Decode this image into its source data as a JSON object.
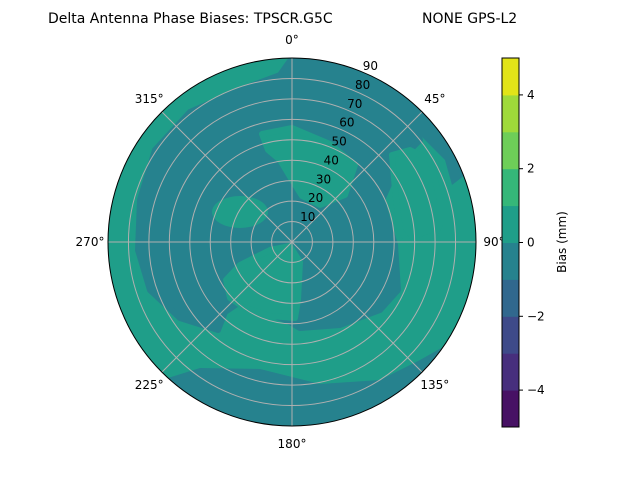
{
  "chart_data": {
    "type": "heatmap",
    "subtype": "polar-filled-contour",
    "title_left": "Delta Antenna Phase Biases: TPSCR.G5C",
    "title_right": "NONE GPS-L2",
    "angular_ticks": [
      "0°",
      "45°",
      "90°",
      "135°",
      "180°",
      "225°",
      "270°",
      "315°"
    ],
    "radial_ticks": [
      "10",
      "20",
      "30",
      "40",
      "50",
      "60",
      "70",
      "80",
      "90"
    ],
    "radial_range": [
      0,
      90
    ],
    "angular_direction": "clockwise",
    "zero_location": "north",
    "grid": true,
    "colorbar": {
      "label": "Bias (mm)",
      "range": [
        -5,
        5
      ],
      "levels": [
        -5,
        -4,
        -3,
        -2,
        -1,
        0,
        1,
        2,
        3,
        4,
        5
      ],
      "ticks": [
        "4",
        "2",
        "0",
        "−2",
        "−4"
      ],
      "tick_values": [
        4,
        2,
        0,
        -2,
        -4
      ],
      "colormap": "viridis",
      "band_colors": [
        "#471164",
        "#472f7d",
        "#3e4a89",
        "#31688e",
        "#26828e",
        "#1f9e89",
        "#35b779",
        "#6ece58",
        "#9fda3a",
        "#e2e418"
      ]
    },
    "dominant_levels": [
      "-1 to 0",
      "0 to 1"
    ]
  }
}
